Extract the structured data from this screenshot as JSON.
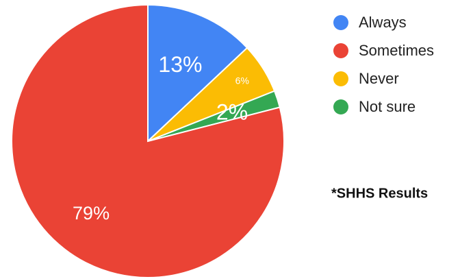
{
  "chart_data": {
    "type": "pie",
    "categories": [
      "Always",
      "Sometimes",
      "Never",
      "Not sure"
    ],
    "values": [
      13,
      79,
      6,
      2
    ],
    "data_labels": [
      "13%",
      "79%",
      "6%",
      "2%"
    ],
    "colors": [
      "#4285f4",
      "#ea4335",
      "#fbbc04",
      "#34a853"
    ],
    "legend_placement": "right",
    "start_angle_deg": 0,
    "direction": "clockwise",
    "annotation": "*SHHS Results"
  }
}
